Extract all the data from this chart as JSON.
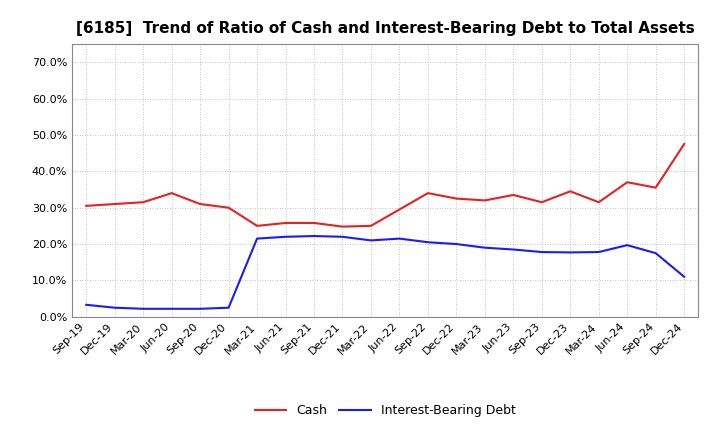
{
  "title": "[6185]  Trend of Ratio of Cash and Interest-Bearing Debt to Total Assets",
  "x_labels": [
    "Sep-19",
    "Dec-19",
    "Mar-20",
    "Jun-20",
    "Sep-20",
    "Dec-20",
    "Mar-21",
    "Jun-21",
    "Sep-21",
    "Dec-21",
    "Mar-22",
    "Jun-22",
    "Sep-22",
    "Dec-22",
    "Mar-23",
    "Jun-23",
    "Sep-23",
    "Dec-23",
    "Mar-24",
    "Jun-24",
    "Sep-24",
    "Dec-24"
  ],
  "cash": [
    0.305,
    0.31,
    0.315,
    0.34,
    0.31,
    0.3,
    0.25,
    0.258,
    0.258,
    0.248,
    0.25,
    0.295,
    0.34,
    0.325,
    0.32,
    0.335,
    0.315,
    0.345,
    0.315,
    0.37,
    0.355,
    0.475
  ],
  "debt": [
    0.033,
    0.025,
    0.022,
    0.022,
    0.022,
    0.025,
    0.215,
    0.22,
    0.222,
    0.22,
    0.21,
    0.215,
    0.205,
    0.2,
    0.19,
    0.185,
    0.178,
    0.177,
    0.178,
    0.197,
    0.175,
    0.11
  ],
  "cash_color": "#e82020",
  "debt_color": "#1a1aff",
  "background_color": "#ffffff",
  "grid_color": "#b0b0b0",
  "ylim": [
    0.0,
    0.75
  ],
  "yticks": [
    0.0,
    0.1,
    0.2,
    0.3,
    0.4,
    0.5,
    0.6,
    0.7
  ],
  "legend_cash": "Cash",
  "legend_debt": "Interest-Bearing Debt",
  "title_fontsize": 11,
  "axis_fontsize": 8,
  "legend_fontsize": 9
}
